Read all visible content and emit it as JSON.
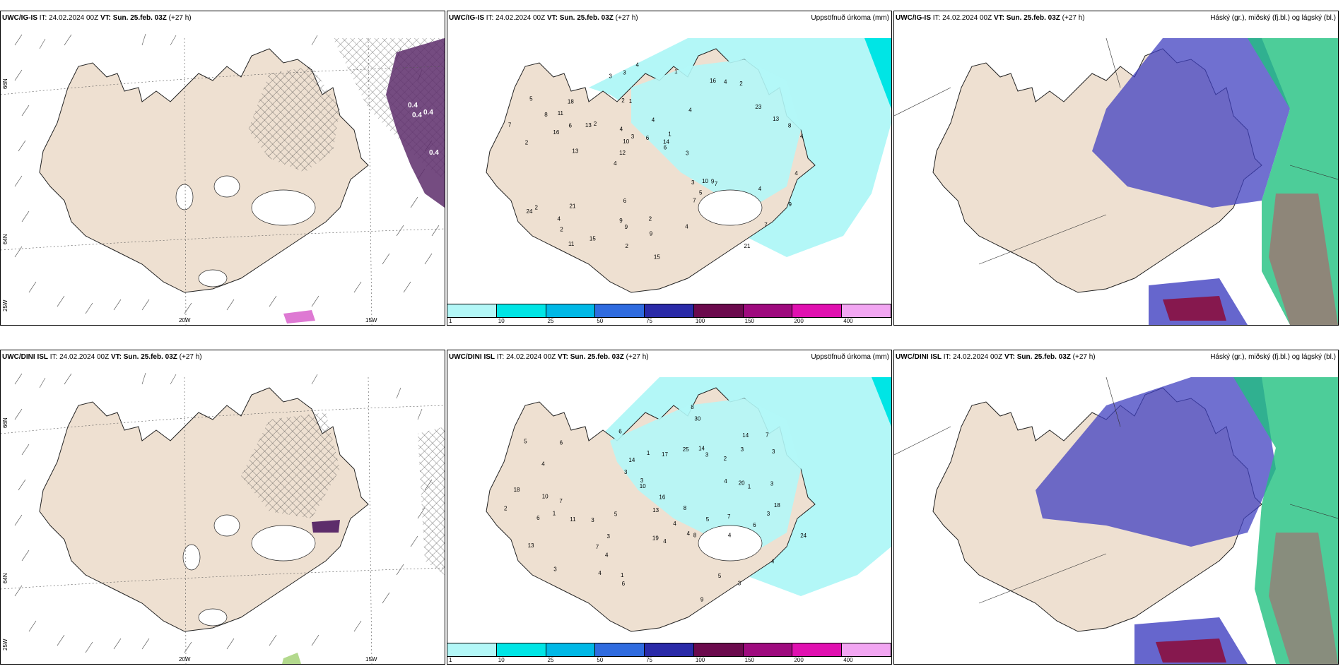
{
  "rows": [
    {
      "model": "UWC/IG-IS",
      "it_label": "IT:",
      "it": "24.02.2024 00Z",
      "vt_label": "VT:",
      "vt": "Sun. 25.feb. 03Z",
      "lead": "(+27 h)"
    },
    {
      "model": "UWC/DINI ISL",
      "it_label": "IT:",
      "it": "24.02.2024 00Z",
      "vt_label": "VT:",
      "vt": "Sun. 25.feb. 03Z",
      "lead": "(+27 h)"
    }
  ],
  "precip_title": "Uppsöfnuð úrkoma (mm)",
  "cloud_title": "Háský (gr.), miðský (fj.bl.) og lágský (bl.)",
  "lon_labels": [
    "20W",
    "15W"
  ],
  "lat_labels": [
    "66N",
    "64N",
    "25W",
    "66N",
    "64N"
  ],
  "colorbar": {
    "ticks": [
      "1",
      "10",
      "25",
      "50",
      "75",
      "100",
      "150",
      "200",
      "400"
    ],
    "colors": [
      "#b3f7f7",
      "#00e5e5",
      "#00b8e6",
      "#2f6bdf",
      "#2a2aa8",
      "#6b0a4d",
      "#9e0a7e",
      "#e010b0",
      "#f2a6f2"
    ]
  },
  "colors": {
    "land": "#eee0d1",
    "light_precip": "#b3f7f7",
    "cyan": "#00e5e5",
    "purple": "#5d2d6b",
    "blue_cloud": "#4040c0",
    "green_cloud": "#20c080"
  },
  "precip_top": [
    "2",
    "4",
    "4",
    "2",
    "4",
    "2",
    "2",
    "2",
    "1",
    "1",
    "7",
    "5",
    "3",
    "4",
    "3",
    "13",
    "12",
    "9",
    "10",
    "18",
    "16",
    "21",
    "21",
    "7",
    "9",
    "15",
    "13",
    "16",
    "7",
    "11",
    "8",
    "14",
    "9",
    "6",
    "24",
    "23",
    "5",
    "4",
    "4",
    "2",
    "2",
    "4",
    "13",
    "7",
    "11",
    "4",
    "1",
    "3",
    "3",
    "9",
    "6",
    "15",
    "10",
    "6",
    "8",
    "4",
    "4",
    "9",
    "6",
    "3",
    "4",
    "2"
  ],
  "precip_bottom": [
    "1",
    "4",
    "5",
    "4",
    "4",
    "3",
    "3",
    "2",
    "1",
    "3",
    "3",
    "4",
    "6",
    "8",
    "13",
    "7",
    "16",
    "18",
    "17",
    "20",
    "24",
    "18",
    "10",
    "11",
    "13",
    "10",
    "7",
    "8",
    "6",
    "7",
    "14",
    "14",
    "6",
    "3",
    "5",
    "14",
    "9",
    "3",
    "4",
    "4",
    "8",
    "5",
    "7",
    "3",
    "30",
    "25",
    "19",
    "5",
    "3",
    "4",
    "1",
    "3",
    "2",
    "6",
    "3",
    "4",
    "4",
    "1",
    "3",
    "6"
  ]
}
